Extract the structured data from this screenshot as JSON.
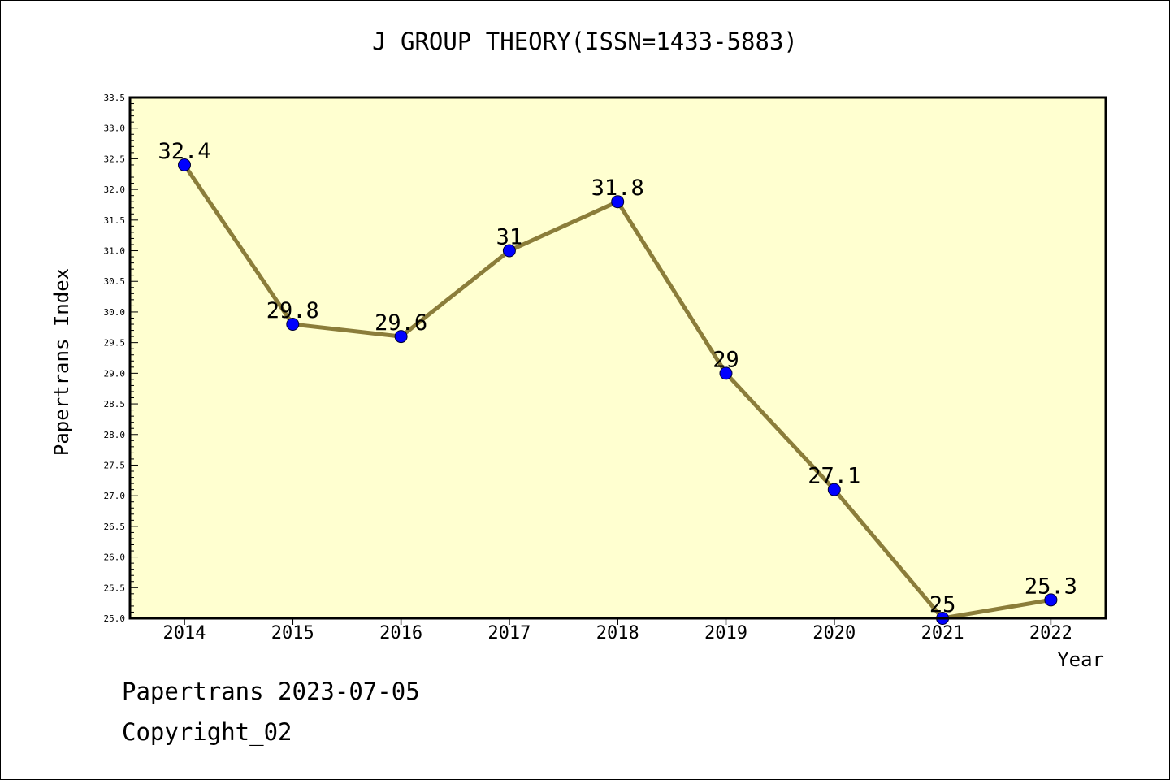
{
  "chart_data": {
    "type": "line",
    "title": "J GROUP THEORY(ISSN=1433-5883)",
    "xlabel": "Year",
    "ylabel": "Papertrans Index",
    "categories": [
      "2014",
      "2015",
      "2016",
      "2017",
      "2018",
      "2019",
      "2020",
      "2021",
      "2022"
    ],
    "values": [
      32.4,
      29.8,
      29.6,
      31,
      31.8,
      29,
      27.1,
      25,
      25.3
    ],
    "data_labels": [
      "32.4",
      "29.8",
      "29.6",
      "31",
      "31.8",
      "29",
      "27.1",
      "25",
      "25.3"
    ],
    "ylim": [
      25.0,
      33.5
    ],
    "yticks": [
      "25.0",
      "25.5",
      "26.0",
      "26.5",
      "27.0",
      "27.5",
      "28.0",
      "28.5",
      "29.0",
      "29.5",
      "30.0",
      "30.5",
      "31.0",
      "31.5",
      "32.0",
      "32.5",
      "33.0",
      "33.5"
    ],
    "grid": false,
    "colors": {
      "plot_background": "#ffffd0",
      "line": "#8b7d3a",
      "marker": "#0000ff",
      "axis": "#000000"
    }
  },
  "footer": {
    "line1": "Papertrans 2023-07-05",
    "line2": "Copyright_02"
  }
}
